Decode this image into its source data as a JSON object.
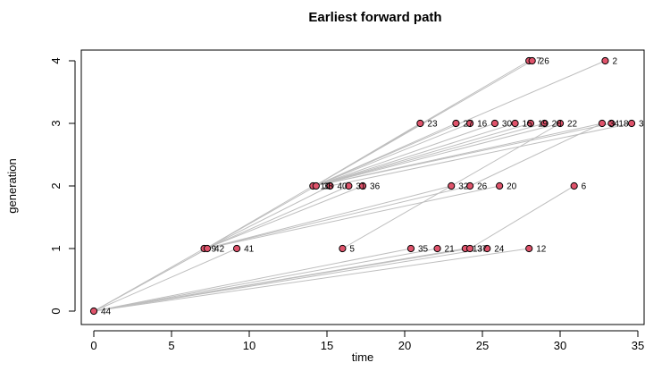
{
  "chart_data": {
    "type": "scatter",
    "title": "Earliest forward path",
    "xlabel": "time",
    "ylabel": "generation",
    "xlim": [
      0,
      35
    ],
    "ylim": [
      0,
      4
    ],
    "xticks": [
      0,
      5,
      10,
      15,
      20,
      25,
      30,
      35
    ],
    "yticks": [
      0,
      1,
      2,
      3,
      4
    ],
    "grid": false,
    "colors": {
      "point_fill": "#DF536B",
      "point_stroke": "#000000",
      "edge": "#BEBEBE",
      "frame": "#000000"
    },
    "nodes": [
      {
        "id": "44",
        "x": 0.0,
        "y": 0
      },
      {
        "id": "9",
        "x": 7.1,
        "y": 1
      },
      {
        "id": "42",
        "x": 7.3,
        "y": 1
      },
      {
        "id": "41",
        "x": 9.2,
        "y": 1
      },
      {
        "id": "5",
        "x": 16.0,
        "y": 1
      },
      {
        "id": "35",
        "x": 20.4,
        "y": 1
      },
      {
        "id": "21",
        "x": 22.1,
        "y": 1
      },
      {
        "id": "13",
        "x": 23.9,
        "y": 1
      },
      {
        "id": "37",
        "x": 24.2,
        "y": 1
      },
      {
        "id": "24",
        "x": 25.3,
        "y": 1
      },
      {
        "id": "12",
        "x": 28.0,
        "y": 1
      },
      {
        "id": "10",
        "x": 14.1,
        "y": 2
      },
      {
        "id": "38",
        "x": 14.3,
        "y": 2
      },
      {
        "id": "40",
        "x": 15.2,
        "y": 2
      },
      {
        "id": "31",
        "x": 16.4,
        "y": 2
      },
      {
        "id": "36",
        "x": 17.3,
        "y": 2
      },
      {
        "id": "32",
        "x": 23.0,
        "y": 2
      },
      {
        "id": "26",
        "x": 24.2,
        "y": 2
      },
      {
        "id": "20",
        "x": 26.1,
        "y": 2
      },
      {
        "id": "6",
        "x": 30.9,
        "y": 2
      },
      {
        "id": "23",
        "x": 21.0,
        "y": 3
      },
      {
        "id": "27",
        "x": 23.3,
        "y": 3
      },
      {
        "id": "16",
        "x": 24.2,
        "y": 3
      },
      {
        "id": "30",
        "x": 25.8,
        "y": 3
      },
      {
        "id": "15",
        "x": 27.1,
        "y": 3
      },
      {
        "id": "19",
        "x": 28.1,
        "y": 3
      },
      {
        "id": "28",
        "x": 29.0,
        "y": 3
      },
      {
        "id": "22",
        "x": 30.0,
        "y": 3
      },
      {
        "id": "34",
        "x": 32.7,
        "y": 3
      },
      {
        "id": "18",
        "x": 33.3,
        "y": 3
      },
      {
        "id": "3",
        "x": 34.6,
        "y": 3
      },
      {
        "id": "7",
        "x": 28.0,
        "y": 4
      },
      {
        "id": "26",
        "x": 28.2,
        "y": 4
      },
      {
        "id": "2",
        "x": 32.9,
        "y": 4
      }
    ],
    "edges": [
      {
        "from": [
          0.0,
          0
        ],
        "to": [
          7.1,
          1
        ]
      },
      {
        "from": [
          0.0,
          0
        ],
        "to": [
          7.3,
          1
        ]
      },
      {
        "from": [
          0.0,
          0
        ],
        "to": [
          9.2,
          1
        ]
      },
      {
        "from": [
          0.0,
          0
        ],
        "to": [
          20.4,
          1
        ]
      },
      {
        "from": [
          0.0,
          0
        ],
        "to": [
          22.1,
          1
        ]
      },
      {
        "from": [
          0.0,
          0
        ],
        "to": [
          23.9,
          1
        ]
      },
      {
        "from": [
          0.0,
          0
        ],
        "to": [
          24.2,
          1
        ]
      },
      {
        "from": [
          0.0,
          0
        ],
        "to": [
          25.3,
          1
        ]
      },
      {
        "from": [
          0.0,
          0
        ],
        "to": [
          28.0,
          1
        ]
      },
      {
        "from": [
          7.2,
          1
        ],
        "to": [
          14.1,
          2
        ]
      },
      {
        "from": [
          7.2,
          1
        ],
        "to": [
          14.3,
          2
        ]
      },
      {
        "from": [
          7.2,
          1
        ],
        "to": [
          15.2,
          2
        ]
      },
      {
        "from": [
          7.2,
          1
        ],
        "to": [
          16.4,
          2
        ]
      },
      {
        "from": [
          7.2,
          1
        ],
        "to": [
          17.3,
          2
        ]
      },
      {
        "from": [
          7.2,
          1
        ],
        "to": [
          23.0,
          2
        ]
      },
      {
        "from": [
          7.2,
          1
        ],
        "to": [
          24.2,
          2
        ]
      },
      {
        "from": [
          7.2,
          1
        ],
        "to": [
          26.1,
          2
        ]
      },
      {
        "from": [
          16.0,
          1
        ],
        "to": [
          30.0,
          3
        ]
      },
      {
        "from": [
          24.2,
          1
        ],
        "to": [
          30.9,
          2
        ]
      },
      {
        "from": [
          14.2,
          2
        ],
        "to": [
          21.0,
          3
        ]
      },
      {
        "from": [
          14.2,
          2
        ],
        "to": [
          23.3,
          3
        ]
      },
      {
        "from": [
          14.2,
          2
        ],
        "to": [
          24.2,
          3
        ]
      },
      {
        "from": [
          14.2,
          2
        ],
        "to": [
          25.8,
          3
        ]
      },
      {
        "from": [
          14.2,
          2
        ],
        "to": [
          27.1,
          3
        ]
      },
      {
        "from": [
          14.2,
          2
        ],
        "to": [
          28.1,
          3
        ]
      },
      {
        "from": [
          14.2,
          2
        ],
        "to": [
          29.0,
          3
        ]
      },
      {
        "from": [
          14.2,
          2
        ],
        "to": [
          30.0,
          3
        ]
      },
      {
        "from": [
          14.2,
          2
        ],
        "to": [
          32.7,
          3
        ]
      },
      {
        "from": [
          14.2,
          2
        ],
        "to": [
          33.3,
          3
        ]
      },
      {
        "from": [
          15.2,
          2
        ],
        "to": [
          34.6,
          3
        ]
      },
      {
        "from": [
          14.2,
          2
        ],
        "to": [
          28.0,
          4
        ]
      },
      {
        "from": [
          14.2,
          2
        ],
        "to": [
          28.2,
          4
        ]
      },
      {
        "from": [
          14.2,
          2
        ],
        "to": [
          32.9,
          4
        ]
      },
      {
        "from": [
          24.2,
          2
        ],
        "to": [
          32.7,
          3
        ]
      }
    ]
  }
}
